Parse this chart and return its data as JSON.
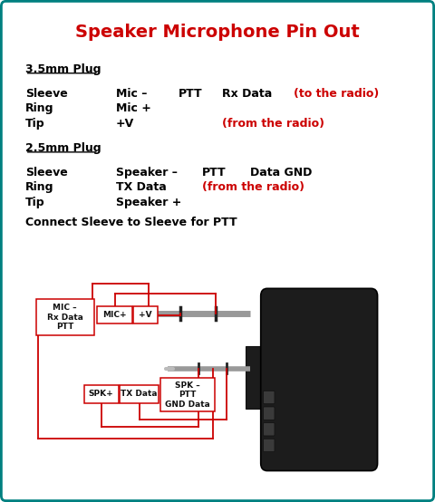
{
  "title": "Speaker Microphone Pin Out",
  "title_color": "#cc0000",
  "bg_color": "#ffffff",
  "border_color": "#008080",
  "text_color_black": "#000000",
  "text_color_red": "#cc0000",
  "plug_35mm": {
    "header": "3.5mm Plug",
    "rows": [
      {
        "label": "Sleeve",
        "col1": "Mic –",
        "col2": "PTT",
        "col3": "Rx Data",
        "col4": "(to the radio)"
      },
      {
        "label": "Ring",
        "col1": "Mic +",
        "col2": "",
        "col3": "",
        "col4": ""
      },
      {
        "label": "Tip",
        "col1": "+V",
        "col2": "",
        "col3": "(from the radio)",
        "col4": ""
      }
    ]
  },
  "plug_25mm": {
    "header": "2.5mm Plug",
    "rows": [
      {
        "label": "Sleeve",
        "col1": "Speaker –",
        "col2": "PTT",
        "col3": "Data GND",
        "col4": ""
      },
      {
        "label": "Ring",
        "col1": "TX Data",
        "col2": "(from the radio)",
        "col3": "",
        "col4": ""
      },
      {
        "label": "Tip",
        "col1": "Speaker +",
        "col2": "",
        "col3": "",
        "col4": ""
      }
    ]
  },
  "connect_note": "Connect Sleeve to Sleeve for PTT",
  "red": "#cc0000",
  "black": "#111111",
  "gray_plug": "#222222",
  "gray_pin": "#888888",
  "gray_ring": "#444444"
}
